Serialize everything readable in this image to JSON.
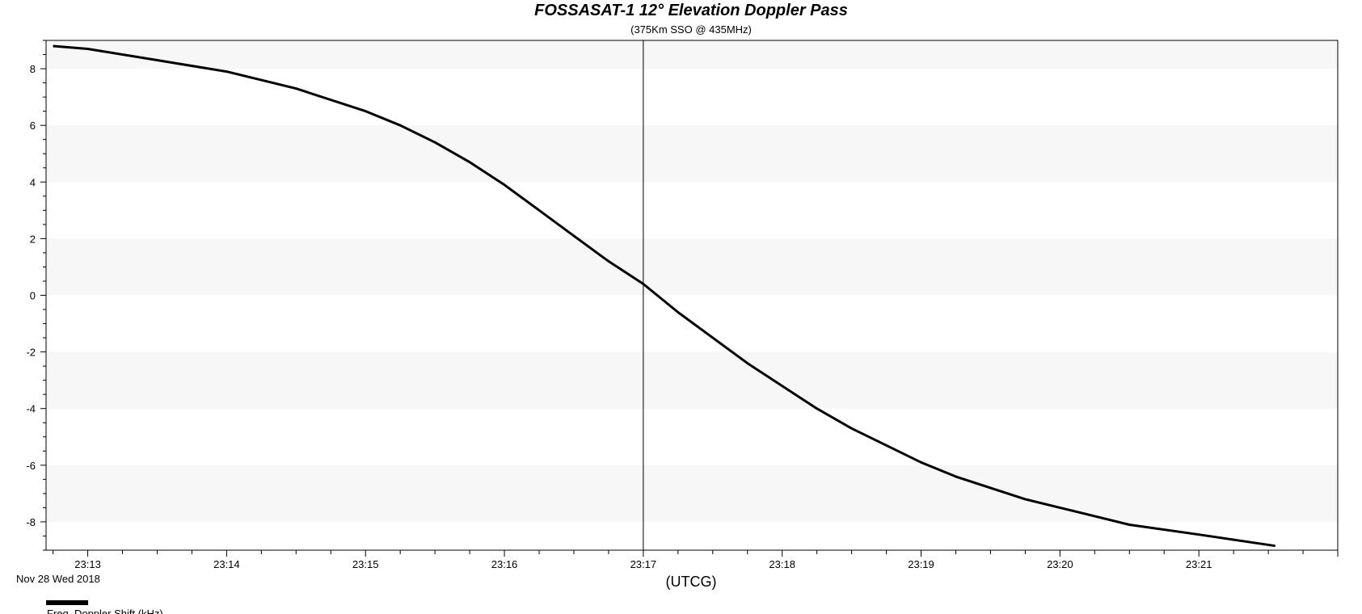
{
  "chart_data": {
    "type": "line",
    "title": "FOSSASAT-1 12° Elevation Doppler Pass",
    "subtitle": "(375Km SSO @ 435MHz)",
    "xlabel": "(UTCG)",
    "date_label": "Nov 28 Wed 2018",
    "xlim": [
      "23:12:42",
      "23:22:00"
    ],
    "ylim": [
      -9,
      9
    ],
    "x_ticks": [
      "23:13",
      "23:14",
      "23:15",
      "23:16",
      "23:17",
      "23:18",
      "23:19",
      "23:20",
      "23:21"
    ],
    "y_ticks": [
      "8",
      "6",
      "4",
      "2",
      "0",
      "-2",
      "-4",
      "-6",
      "-8"
    ],
    "grid": "alternating horizontal bands",
    "marker_time": "23:17",
    "legend_position": "bottom-left",
    "series": [
      {
        "name": "Freq. Doppler Shift (kHz)",
        "color": "#000000",
        "x": [
          "23:12:45",
          "23:13:00",
          "23:13:30",
          "23:14:00",
          "23:14:30",
          "23:15:00",
          "23:15:15",
          "23:15:30",
          "23:15:45",
          "23:16:00",
          "23:16:15",
          "23:16:30",
          "23:16:45",
          "23:17:00",
          "23:17:15",
          "23:17:30",
          "23:17:45",
          "23:18:00",
          "23:18:15",
          "23:18:30",
          "23:18:45",
          "23:19:00",
          "23:19:15",
          "23:19:30",
          "23:19:45",
          "23:20:00",
          "23:20:15",
          "23:20:30",
          "23:21:00",
          "23:21:33"
        ],
        "y": [
          8.8,
          8.7,
          8.3,
          7.9,
          7.3,
          6.5,
          6.0,
          5.4,
          4.7,
          3.9,
          3.0,
          2.1,
          1.2,
          0.4,
          -0.6,
          -1.5,
          -2.4,
          -3.2,
          -4.0,
          -4.7,
          -5.3,
          -5.9,
          -6.4,
          -6.8,
          -7.2,
          -7.5,
          -7.8,
          -8.1,
          -8.45,
          -8.85
        ]
      }
    ]
  }
}
